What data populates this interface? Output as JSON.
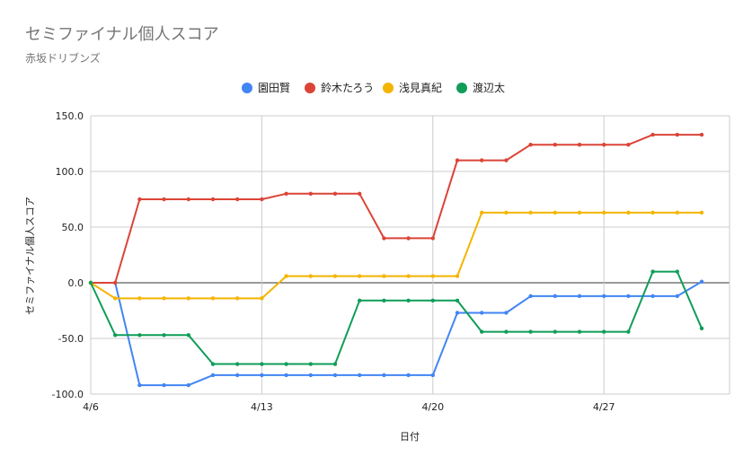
{
  "chart_data": {
    "type": "line",
    "title": "セミファイナル個人スコア",
    "subtitle": "赤坂ドリブンズ",
    "xlabel": "日付",
    "ylabel": "セミファイナル個人スコア",
    "ylim": [
      -100,
      150
    ],
    "yticks": [
      "150.0",
      "100.0",
      "50.0",
      "0.0",
      "-50.0",
      "-100.0"
    ],
    "xlim": [
      "4/6",
      "5/3"
    ],
    "xticks": [
      "4/6",
      "4/13",
      "4/20",
      "4/27"
    ],
    "legend_position": "top",
    "grid": true,
    "x": [
      "4/6",
      "4/7",
      "4/8",
      "4/9",
      "4/10",
      "4/11",
      "4/12",
      "4/13",
      "4/14",
      "4/15",
      "4/16",
      "4/17",
      "4/18",
      "4/19",
      "4/20",
      "4/21",
      "4/22",
      "4/23",
      "4/24",
      "4/25",
      "4/26",
      "4/27",
      "4/28",
      "4/29",
      "4/30",
      "5/1"
    ],
    "series": [
      {
        "name": "園田賢",
        "color": "#4285f4",
        "values": [
          0,
          0,
          -92,
          -92,
          -92,
          -83,
          -83,
          -83,
          -83,
          -83,
          -83,
          -83,
          -83,
          -83,
          -83,
          -27,
          -27,
          -27,
          -12,
          -12,
          -12,
          -12,
          -12,
          -12,
          -12,
          1
        ]
      },
      {
        "name": "鈴木たろう",
        "color": "#db4437",
        "values": [
          0,
          0,
          75,
          75,
          75,
          75,
          75,
          75,
          80,
          80,
          80,
          80,
          40,
          40,
          40,
          110,
          110,
          110,
          124,
          124,
          124,
          124,
          124,
          133,
          133,
          133
        ]
      },
      {
        "name": "浅見真紀",
        "color": "#f4b400",
        "values": [
          0,
          -14,
          -14,
          -14,
          -14,
          -14,
          -14,
          -14,
          6,
          6,
          6,
          6,
          6,
          6,
          6,
          6,
          63,
          63,
          63,
          63,
          63,
          63,
          63,
          63,
          63,
          63
        ]
      },
      {
        "name": "渡辺太",
        "color": "#0f9d58",
        "values": [
          0,
          -47,
          -47,
          -47,
          -47,
          -73,
          -73,
          -73,
          -73,
          -73,
          -73,
          -16,
          -16,
          -16,
          -16,
          -16,
          -44,
          -44,
          -44,
          -44,
          -44,
          -44,
          -44,
          10,
          10,
          -41
        ]
      }
    ]
  }
}
